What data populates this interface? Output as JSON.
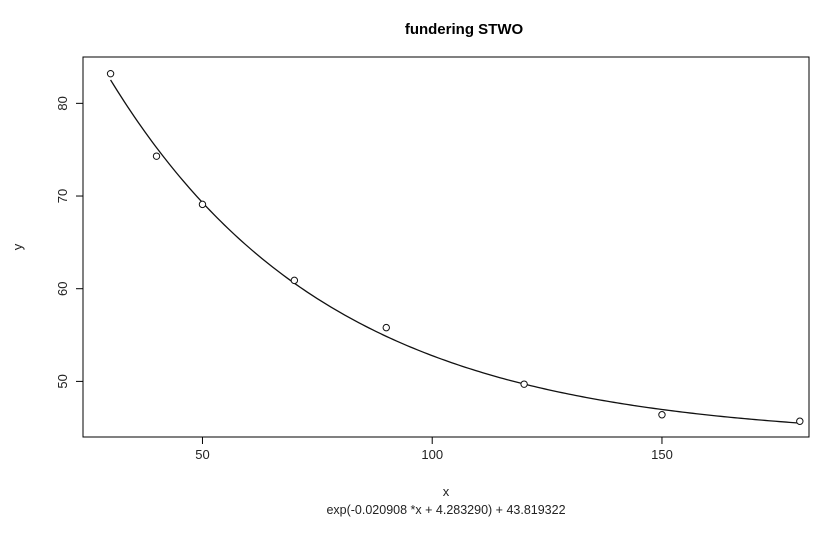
{
  "chart_data": {
    "type": "scatter",
    "title": "fundering STWO",
    "xlabel": "x",
    "ylabel": "y",
    "formula_label": "exp(-0.020908 *x + 4.283290) + 43.819322",
    "xlim": [
      24,
      182
    ],
    "ylim": [
      44,
      85
    ],
    "grid": false,
    "x_ticks": [
      {
        "value": 50,
        "label": "50"
      },
      {
        "value": 100,
        "label": "100"
      },
      {
        "value": 150,
        "label": "150"
      }
    ],
    "y_ticks": [
      {
        "value": 50,
        "label": "50"
      },
      {
        "value": 60,
        "label": "60"
      },
      {
        "value": 70,
        "label": "70"
      },
      {
        "value": 80,
        "label": "80"
      }
    ],
    "series": [
      {
        "type": "scatter",
        "x": [
          30,
          40,
          50,
          70,
          90,
          120,
          150,
          180
        ],
        "y": [
          83.2,
          74.3,
          69.1,
          60.9,
          55.8,
          49.7,
          46.4,
          45.7
        ]
      },
      {
        "type": "line",
        "fit": {
          "a": -0.020908,
          "b": 4.28329,
          "c": 43.819322
        },
        "x_range": [
          30,
          180
        ]
      }
    ]
  }
}
